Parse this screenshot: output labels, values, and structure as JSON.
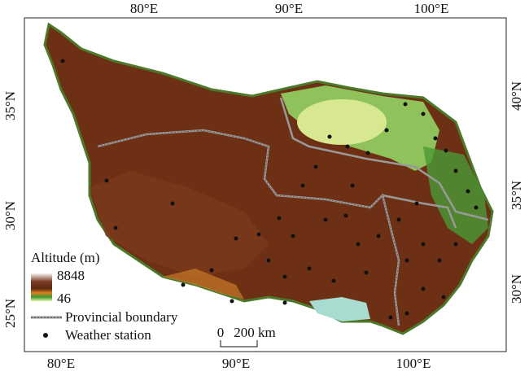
{
  "map": {
    "top_labels": [
      "80°E",
      "90°E",
      "100°E"
    ],
    "bottom_labels": [
      "80°E",
      "90°E",
      "100°E"
    ],
    "left_labels": [
      "35°N",
      "30°N",
      "25°N"
    ],
    "right_labels": [
      "40°N",
      "35°N",
      "30°N"
    ],
    "legend": {
      "title": "Altitude (m)",
      "max": 8848,
      "min": 46,
      "boundary": "Provincial boundary",
      "station": "Weather station"
    },
    "scale_bar": {
      "start": "0",
      "end": "200 km"
    }
  }
}
